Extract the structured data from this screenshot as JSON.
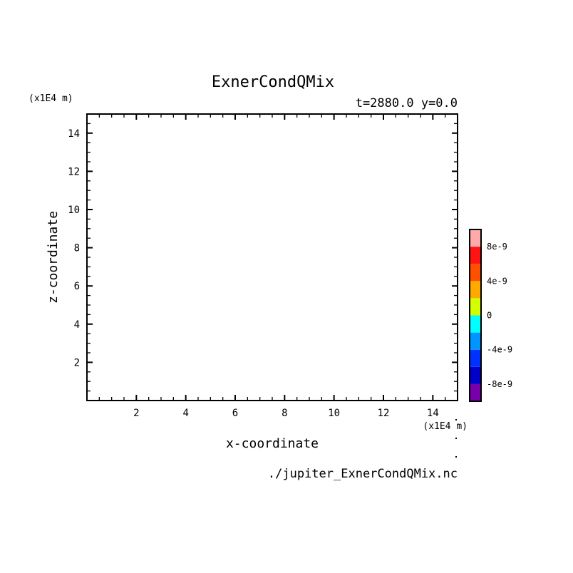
{
  "chart_data": {
    "type": "heatmap",
    "title": "ExnerCondQMix",
    "subtitle": "t=2880.0 y=0.0",
    "xlabel": "x-coordinate",
    "ylabel": "z-coordinate",
    "x_unit": "(x1E4 m)",
    "y_unit": "(x1E4 m)",
    "xlim": [
      0,
      15
    ],
    "ylim": [
      0,
      15
    ],
    "xticks": [
      2,
      4,
      6,
      8,
      10,
      12,
      14
    ],
    "yticks": [
      2,
      4,
      6,
      8,
      10,
      12,
      14
    ],
    "minor_tick_step": 0.5,
    "grid": false,
    "data": [],
    "source_file": "./jupiter_ExnerCondQMix.nc",
    "colorbar": {
      "placement": "right",
      "levels": [
        -1e-08,
        -8e-09,
        -6e-09,
        -4e-09,
        -2e-09,
        0,
        2e-09,
        4e-09,
        6e-09,
        8e-09,
        1e-08
      ],
      "colors": [
        "#7800aa",
        "#0000c8",
        "#0032ff",
        "#0096ff",
        "#00ffff",
        "#d4ff00",
        "#ffaa00",
        "#ff5000",
        "#ff1414",
        "#ffaaaa"
      ],
      "tick_labels": [
        {
          "value": 8e-09,
          "label": "8e-9"
        },
        {
          "value": 4e-09,
          "label": "4e-9"
        },
        {
          "value": 0,
          "label": "0"
        },
        {
          "value": -4e-09,
          "label": "-4e-9"
        },
        {
          "value": -8e-09,
          "label": "-8e-9"
        }
      ]
    }
  }
}
